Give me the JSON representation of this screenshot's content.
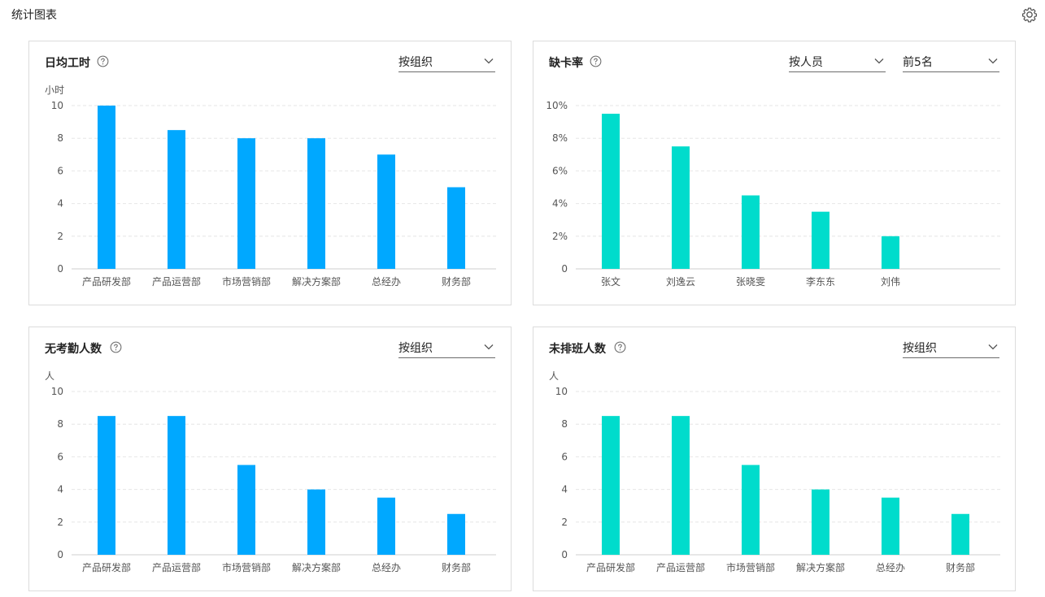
{
  "header": {
    "title": "统计图表",
    "settings_icon": "gear-icon"
  },
  "colors": {
    "blue": "#00a8ff",
    "teal": "#00dccc",
    "grid": "#e6e6e6"
  },
  "cards": [
    {
      "title": "日均工时",
      "selects": [
        "按组织"
      ],
      "unit": "小时"
    },
    {
      "title": "缺卡率",
      "selects": [
        "按人员",
        "前5名"
      ],
      "unit": ""
    },
    {
      "title": "无考勤人数",
      "selects": [
        "按组织"
      ],
      "unit": "人"
    },
    {
      "title": "未排班人数",
      "selects": [
        "按组织"
      ],
      "unit": "人"
    }
  ],
  "chart_data": [
    {
      "type": "bar",
      "title": "日均工时",
      "ylabel": "小时",
      "categories": [
        "产品研发部",
        "产品运营部",
        "市场营销部",
        "解决方案部",
        "总经办",
        "财务部"
      ],
      "values": [
        10,
        8.5,
        8,
        8,
        7,
        5
      ],
      "ylim": [
        0,
        10
      ],
      "yticks": [
        "0",
        "2",
        "4",
        "6",
        "8",
        "10"
      ],
      "color": "#00a8ff",
      "grid": true
    },
    {
      "type": "bar",
      "title": "缺卡率",
      "ylabel": "",
      "categories": [
        "张文",
        "刘逸云",
        "张晓雯",
        "李东东",
        "刘伟"
      ],
      "values": [
        9.5,
        7.5,
        4.5,
        3.5,
        2
      ],
      "ylim": [
        0,
        10
      ],
      "yticks": [
        "0",
        "2%",
        "4%",
        "6%",
        "8%",
        "10%"
      ],
      "color": "#00dccc",
      "grid": true
    },
    {
      "type": "bar",
      "title": "无考勤人数",
      "ylabel": "人",
      "categories": [
        "产品研发部",
        "产品运营部",
        "市场营销部",
        "解决方案部",
        "总经办",
        "财务部"
      ],
      "values": [
        8.5,
        8.5,
        5.5,
        4,
        3.5,
        2.5
      ],
      "ylim": [
        0,
        10
      ],
      "yticks": [
        "0",
        "2",
        "4",
        "6",
        "8",
        "10"
      ],
      "color": "#00a8ff",
      "grid": true
    },
    {
      "type": "bar",
      "title": "未排班人数",
      "ylabel": "人",
      "categories": [
        "产品研发部",
        "产品运营部",
        "市场营销部",
        "解决方案部",
        "总经办",
        "财务部"
      ],
      "values": [
        8.5,
        8.5,
        5.5,
        4,
        3.5,
        2.5
      ],
      "ylim": [
        0,
        10
      ],
      "yticks": [
        "0",
        "2",
        "4",
        "6",
        "8",
        "10"
      ],
      "color": "#00dccc",
      "grid": true
    }
  ]
}
